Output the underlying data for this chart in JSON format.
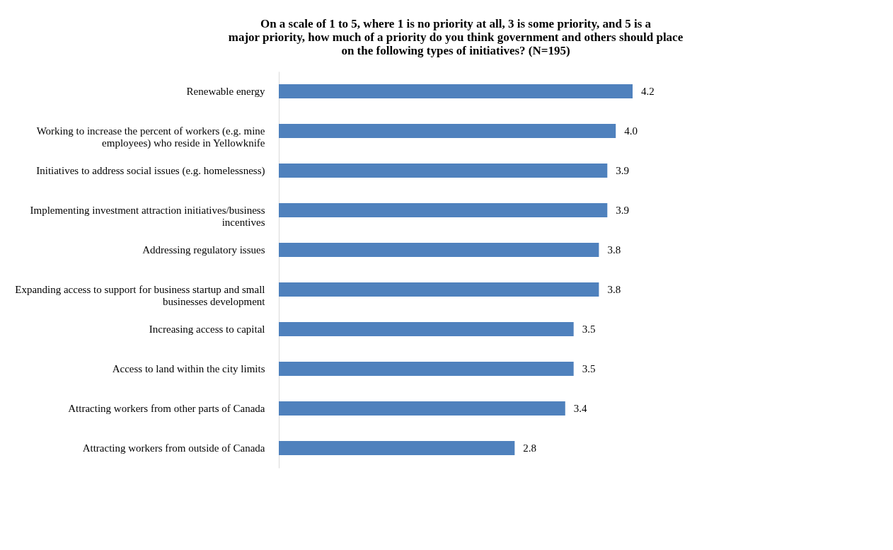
{
  "chart_data": {
    "type": "bar",
    "orientation": "horizontal",
    "title": "On a scale of 1 to 5, where 1 is no priority at all, 3 is some priority, and 5 is a major priority, how much of a priority do you think government and others should place on the following types of initiatives? (N=195)",
    "categories": [
      "Renewable energy",
      "Working to increase the percent of workers (e.g. mine employees) who reside in Yellowknife",
      "Initiatives to address social issues (e.g. homelessness)",
      "Implementing investment attraction initiatives/business incentives",
      "Addressing regulatory issues",
      "Expanding access to support for business startup and small businesses development",
      "Increasing access to capital",
      "Access to land within the city limits",
      "Attracting workers from other parts of Canada",
      "Attracting workers from outside of Canada"
    ],
    "values": [
      4.2,
      4.0,
      3.9,
      3.9,
      3.8,
      3.8,
      3.5,
      3.5,
      3.4,
      2.8
    ],
    "value_labels": [
      "4.2",
      "4.0",
      "3.9",
      "3.9",
      "3.8",
      "3.8",
      "3.5",
      "3.5",
      "3.4",
      "2.8"
    ],
    "color": "#4f81bd",
    "grid": false
  }
}
